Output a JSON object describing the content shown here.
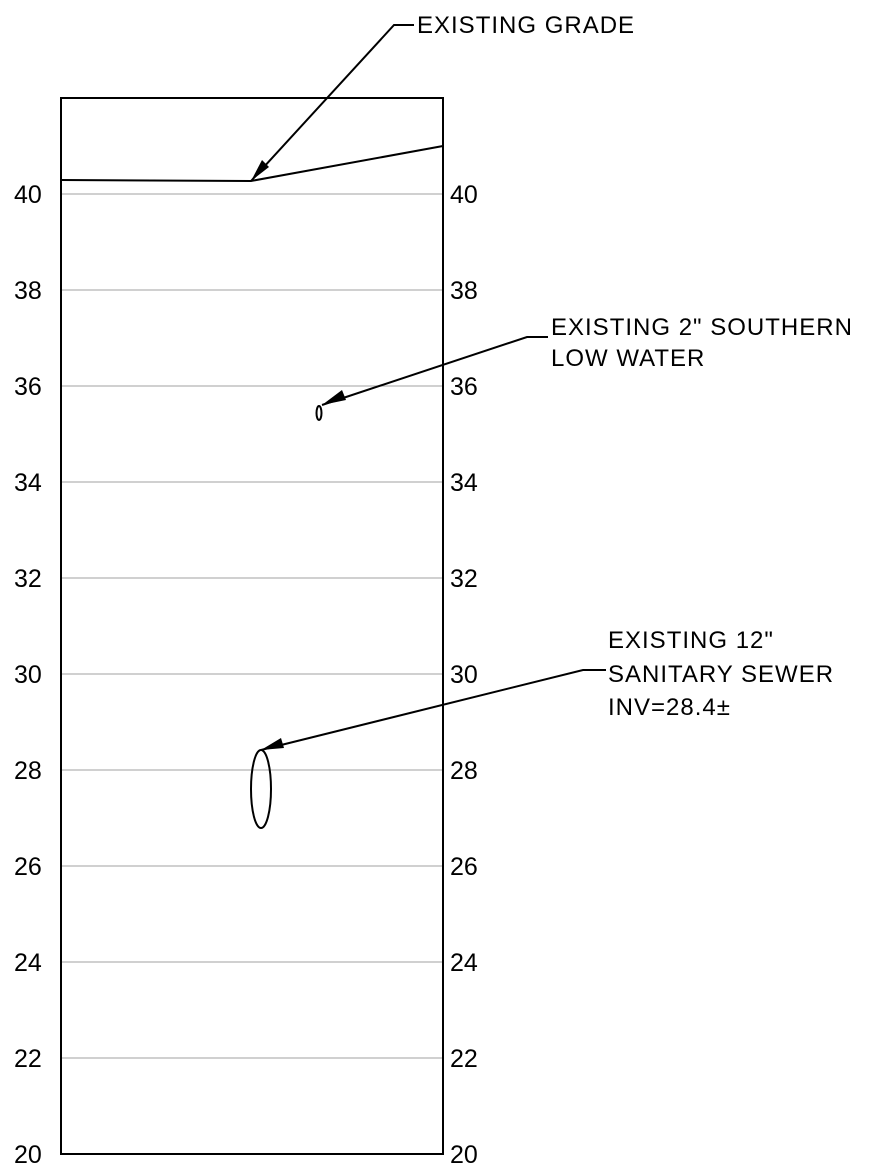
{
  "profile": {
    "elevation_axis": {
      "min": 20,
      "max": 40,
      "step": 2,
      "top_of_frame_elevation": 42
    },
    "left_labels": [
      "40",
      "38",
      "36",
      "34",
      "32",
      "30",
      "28",
      "26",
      "24",
      "22",
      "20"
    ],
    "right_labels": [
      "40",
      "38",
      "36",
      "34",
      "32",
      "30",
      "28",
      "26",
      "24",
      "22",
      "20"
    ],
    "grade_elevations": {
      "left": 40.3,
      "low_point": 40.25,
      "right": 41.0
    },
    "callouts": {
      "grade": {
        "lines": [
          "EXISTING GRADE"
        ]
      },
      "water": {
        "lines": [
          "EXISTING 2\" SOUTHERN",
          "LOW WATER"
        ],
        "pipe_elevation": 35.4
      },
      "sewer": {
        "lines": [
          "EXISTING 12\"",
          "SANITARY SEWER",
          "INV=28.4±"
        ],
        "pipe_top_elevation": 28.4,
        "pipe_bottom_elevation": 26.8
      }
    }
  }
}
